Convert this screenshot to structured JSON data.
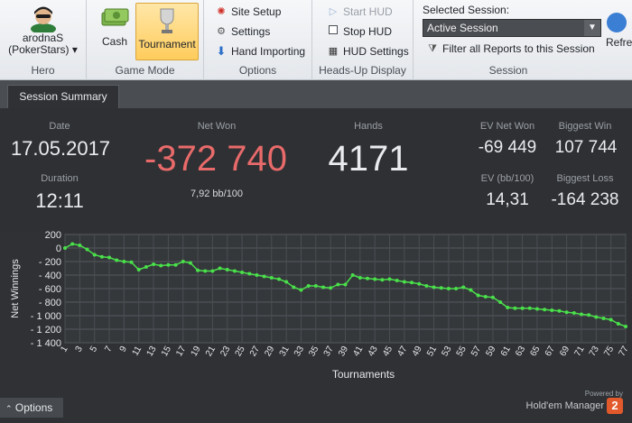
{
  "ribbon": {
    "hero": {
      "name": "arodnaS",
      "site": "(PokerStars)",
      "group_label": "Hero"
    },
    "game_mode": {
      "cash": "Cash",
      "tournament": "Tournament",
      "group_label": "Game Mode"
    },
    "options": {
      "site_setup": "Site Setup",
      "settings": "Settings",
      "hand_importing": "Hand Importing",
      "group_label": "Options"
    },
    "hud": {
      "start": "Start HUD",
      "stop": "Stop HUD",
      "settings": "HUD Settings",
      "group_label": "Heads-Up Display"
    },
    "session": {
      "title": "Selected Session:",
      "selected": "Active Session",
      "filter": "Filter all Reports to this Session",
      "group_label": "Session"
    },
    "refresh": "Refre"
  },
  "tabs": {
    "session_summary": "Session Summary"
  },
  "summary": {
    "date_label": "Date",
    "date": "17.05.2017",
    "duration_label": "Duration",
    "duration": "12:11",
    "net_won_label": "Net Won",
    "net_won": "-372 740",
    "bb_per_100": "7,92 bb/100",
    "hands_label": "Hands",
    "hands": "4171",
    "ev_net_won_label": "EV Net Won",
    "ev_net_won": "-69 449",
    "biggest_win_label": "Biggest Win",
    "biggest_win": "107 744",
    "ev_bb_label": "EV (bb/100)",
    "ev_bb": "14,31",
    "biggest_loss_label": "Biggest Loss",
    "biggest_loss": "-164 238"
  },
  "colors": {
    "net_won": "#e96a6a",
    "line": "#49e04a"
  },
  "chart_data": {
    "type": "line",
    "xlabel": "Tournaments",
    "ylabel": "Net Winnings",
    "ylim": [
      -1400,
      200
    ],
    "yticks": [
      200,
      0,
      -200,
      -400,
      -600,
      -800,
      -1000,
      -1200,
      -1400
    ],
    "ytick_labels": [
      "200",
      "0",
      "- 200",
      "- 400",
      "- 600",
      "- 800",
      "- 1 000",
      "- 1 200",
      "- 1 400"
    ],
    "xticks": [
      1,
      3,
      5,
      7,
      9,
      11,
      13,
      15,
      17,
      19,
      21,
      23,
      25,
      27,
      29,
      31,
      33,
      35,
      37,
      39,
      41,
      43,
      45,
      47,
      49,
      51,
      53,
      55,
      57,
      59,
      61,
      63,
      65,
      67,
      69,
      71,
      73,
      75,
      77
    ],
    "grid": true,
    "x": [
      1,
      2,
      3,
      4,
      5,
      6,
      7,
      8,
      9,
      10,
      11,
      12,
      13,
      14,
      15,
      16,
      17,
      18,
      19,
      20,
      21,
      22,
      23,
      24,
      25,
      26,
      27,
      28,
      29,
      30,
      31,
      32,
      33,
      34,
      35,
      36,
      37,
      38,
      39,
      40,
      41,
      42,
      43,
      44,
      45,
      46,
      47,
      48,
      49,
      50,
      51,
      52,
      53,
      54,
      55,
      56,
      57,
      58,
      59,
      60,
      61,
      62,
      63,
      64,
      65,
      66,
      67,
      68,
      69,
      70,
      71,
      72,
      73,
      74,
      75,
      76,
      77
    ],
    "y": [
      0,
      60,
      40,
      -20,
      -100,
      -130,
      -140,
      -180,
      -200,
      -210,
      -320,
      -280,
      -240,
      -260,
      -250,
      -250,
      -200,
      -220,
      -330,
      -340,
      -340,
      -300,
      -320,
      -340,
      -360,
      -380,
      -400,
      -420,
      -440,
      -460,
      -500,
      -580,
      -620,
      -560,
      -560,
      -580,
      -590,
      -540,
      -540,
      -400,
      -440,
      -450,
      -460,
      -470,
      -460,
      -480,
      -500,
      -510,
      -530,
      -560,
      -580,
      -590,
      -600,
      -600,
      -580,
      -620,
      -700,
      -720,
      -730,
      -800,
      -880,
      -890,
      -890,
      -890,
      -900,
      -910,
      -920,
      -930,
      -950,
      -960,
      -980,
      -990,
      -1020,
      -1040,
      -1060,
      -1120,
      -1160
    ]
  },
  "footer": {
    "options": "Options",
    "powered_by": "Powered by",
    "brand": "Hold'em Manager",
    "badge": "2"
  }
}
